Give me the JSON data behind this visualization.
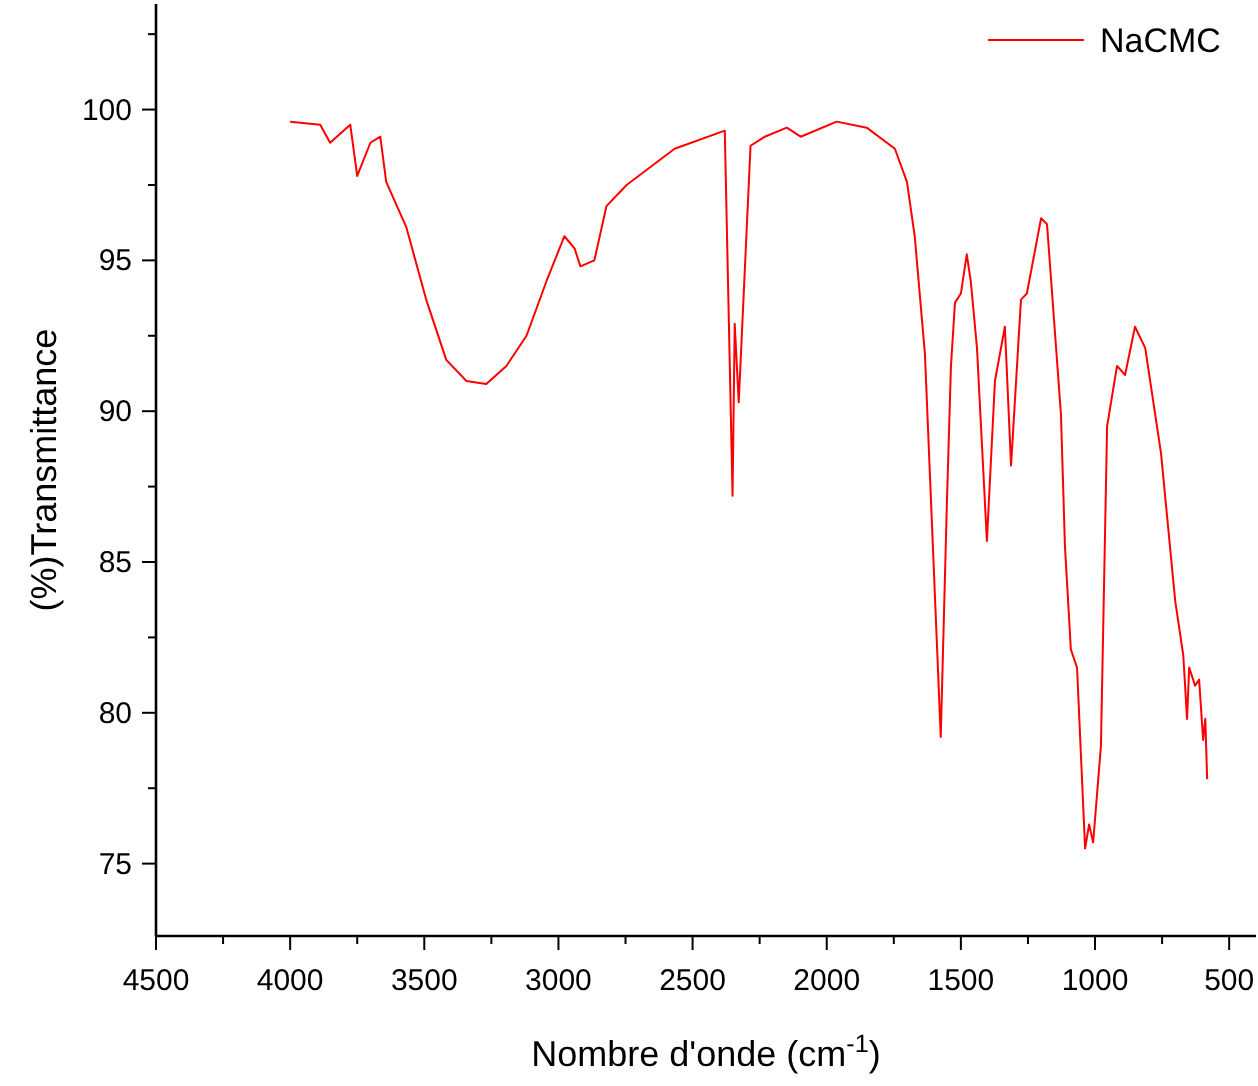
{
  "chart_data": {
    "type": "line",
    "xlabel": "Nombre d'onde (cm$^{-1}$)",
    "ylabel": "(%)Transmittance",
    "xlim": [
      4500,
      400
    ],
    "ylim": [
      72.6,
      103.5
    ],
    "xticks": [
      4500,
      {
        "value": 4250,
        "label": null
      },
      4000,
      {
        "value": 3750,
        "label": null
      },
      3500,
      {
        "value": 3250,
        "label": null
      },
      3000,
      {
        "value": 2750,
        "label": null
      },
      2500,
      {
        "value": 2250,
        "label": null
      },
      2000,
      {
        "value": 1750,
        "label": null
      },
      1500,
      {
        "value": 1250,
        "label": null
      },
      1000,
      {
        "value": 750,
        "label": null
      },
      500
    ],
    "yticks": [
      75,
      {
        "value": 77.5,
        "label": null
      },
      80,
      {
        "value": 82.5,
        "label": null
      },
      85,
      {
        "value": 87.5,
        "label": null
      },
      90,
      {
        "value": 92.5,
        "label": null
      },
      95,
      {
        "value": 97.5,
        "label": null
      },
      100,
      {
        "value": 102.5,
        "label": null
      }
    ],
    "grid": false,
    "legend": "top right",
    "marker": "none",
    "line_style": "solid",
    "series": [
      {
        "name": "NaCMC",
        "color": "#ff0000",
        "x": [
          4000,
          3888,
          3851,
          3776,
          3750,
          3701,
          3664,
          3642,
          3567,
          3493,
          3418,
          3343,
          3269,
          3194,
          3119,
          3045,
          2978,
          2940,
          2918,
          2866,
          2821,
          2746,
          2567,
          2380,
          2351,
          2343,
          2328,
          2284,
          2231,
          2149,
          2097,
          1963,
          1851,
          1746,
          1701,
          1672,
          1634,
          1575,
          1552,
          1537,
          1522,
          1500,
          1478,
          1463,
          1440,
          1403,
          1373,
          1336,
          1313,
          1276,
          1254,
          1201,
          1179,
          1127,
          1112,
          1090,
          1067,
          1037,
          1022,
          1007,
          978,
          955,
          918,
          888,
          851,
          813,
          754,
          701,
          671,
          657,
          649,
          627,
          612,
          597,
          589,
          582
        ],
        "values": [
          99.6,
          99.5,
          98.9,
          99.5,
          97.8,
          98.9,
          99.1,
          97.6,
          96.1,
          93.7,
          91.7,
          91.0,
          90.9,
          91.5,
          92.5,
          94.3,
          95.8,
          95.4,
          94.8,
          95.0,
          96.8,
          97.5,
          98.7,
          99.3,
          87.2,
          92.9,
          90.3,
          98.8,
          99.1,
          99.4,
          99.1,
          99.6,
          99.4,
          98.7,
          97.6,
          95.8,
          91.9,
          79.2,
          87.0,
          91.5,
          93.6,
          93.9,
          95.2,
          94.3,
          92.1,
          85.7,
          91.0,
          92.8,
          88.2,
          93.7,
          93.9,
          96.4,
          96.2,
          89.9,
          85.5,
          82.1,
          81.5,
          75.5,
          76.3,
          75.7,
          78.9,
          89.5,
          91.5,
          91.2,
          92.8,
          92.1,
          88.6,
          83.7,
          81.9,
          79.8,
          81.5,
          80.9,
          81.1,
          79.1,
          79.8,
          77.8
        ]
      }
    ]
  }
}
